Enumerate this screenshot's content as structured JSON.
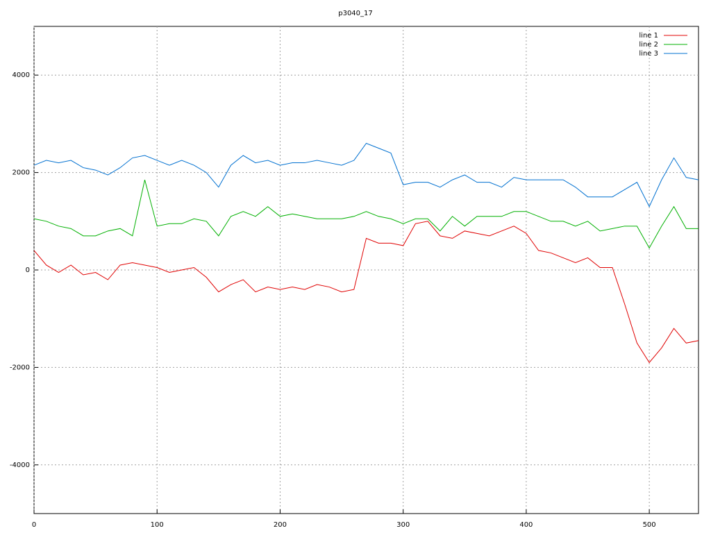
{
  "chart_data": {
    "type": "line",
    "title": "p3040_17",
    "x": [
      0,
      10,
      20,
      30,
      40,
      50,
      60,
      70,
      80,
      90,
      100,
      110,
      120,
      130,
      140,
      150,
      160,
      170,
      180,
      190,
      200,
      210,
      220,
      230,
      240,
      250,
      260,
      270,
      280,
      290,
      300,
      310,
      320,
      330,
      340,
      350,
      360,
      370,
      380,
      390,
      400,
      410,
      420,
      430,
      440,
      450,
      460,
      470,
      480,
      490,
      500,
      510,
      520,
      530,
      540
    ],
    "series": [
      {
        "name": "line 1",
        "color": "#e00000",
        "values": [
          400,
          100,
          -50,
          100,
          -100,
          -50,
          -200,
          100,
          150,
          100,
          50,
          -50,
          0,
          50,
          -150,
          -450,
          -300,
          -200,
          -450,
          -350,
          -400,
          -350,
          -400,
          -300,
          -350,
          -450,
          -400,
          650,
          550,
          550,
          500,
          950,
          1000,
          700,
          650,
          800,
          750,
          700,
          800,
          900,
          750,
          400,
          350,
          250,
          150,
          250,
          50,
          50,
          -700,
          -1500,
          -1900,
          -1600,
          -1200,
          -1500,
          -1450
        ]
      },
      {
        "name": "line 2",
        "color": "#00b000",
        "values": [
          1050,
          1000,
          900,
          850,
          700,
          700,
          800,
          850,
          700,
          1850,
          900,
          950,
          950,
          1050,
          1000,
          700,
          1100,
          1200,
          1100,
          1300,
          1100,
          1150,
          1100,
          1050,
          1050,
          1050,
          1100,
          1200,
          1100,
          1050,
          950,
          1050,
          1050,
          800,
          1100,
          900,
          1100,
          1100,
          1100,
          1200,
          1200,
          1100,
          1000,
          1000,
          900,
          1000,
          800,
          850,
          900,
          900,
          450,
          900,
          1300,
          850,
          850
        ]
      },
      {
        "name": "line 3",
        "color": "#0070d0",
        "values": [
          2150,
          2250,
          2200,
          2250,
          2100,
          2050,
          1950,
          2100,
          2300,
          2350,
          2250,
          2150,
          2250,
          2150,
          2000,
          1700,
          2150,
          2350,
          2200,
          2250,
          2150,
          2200,
          2200,
          2250,
          2200,
          2150,
          2250,
          2600,
          2500,
          2400,
          1750,
          1800,
          1800,
          1700,
          1850,
          1950,
          1800,
          1800,
          1700,
          1900,
          1850,
          1850,
          1850,
          1850,
          1700,
          1500,
          1500,
          1500,
          1650,
          1800,
          1300,
          1850,
          2300,
          1900,
          1850
        ]
      }
    ],
    "xlim": [
      0,
      540
    ],
    "xticks": [
      0,
      100,
      200,
      300,
      400,
      500
    ],
    "ylim": [
      -5000,
      5000
    ],
    "yticks": [
      -4000,
      -2000,
      0,
      2000,
      4000
    ],
    "grid": true,
    "legend": "top-right"
  }
}
